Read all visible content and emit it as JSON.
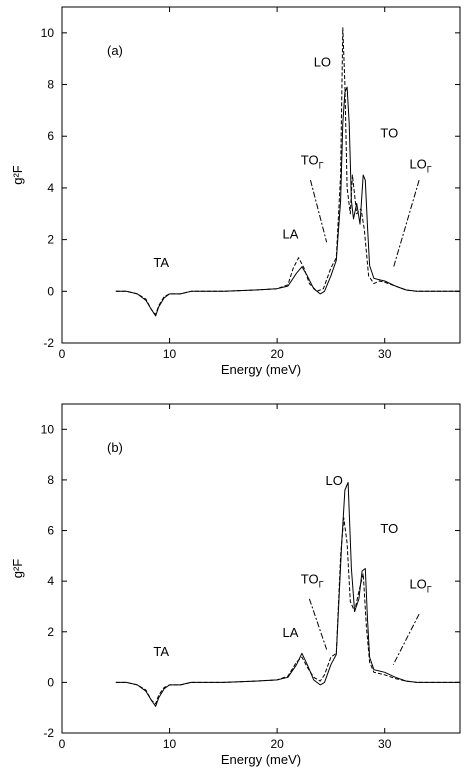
{
  "chart_data": [
    {
      "type": "line",
      "panel_label": "(a)",
      "xlabel": "Energy (meV)",
      "ylabel": "g²F",
      "xlim": [
        0,
        37
      ],
      "ylim": [
        -2,
        11
      ],
      "xticks": [
        0,
        10,
        20,
        30
      ],
      "yticks": [
        -2,
        0,
        2,
        4,
        6,
        8,
        10
      ],
      "grid": false,
      "annotations": [
        {
          "text": "TA",
          "x": 8.5,
          "y": 0.95
        },
        {
          "text": "LA",
          "x": 20.5,
          "y": 2.05
        },
        {
          "text": "TO",
          "sub": "Γ",
          "x": 22.2,
          "y": 4.9
        },
        {
          "text": "LO",
          "x": 23.4,
          "y": 8.7
        },
        {
          "text": "TO",
          "x": 29.6,
          "y": 5.95
        },
        {
          "text": "LO",
          "sub": "Γ",
          "x": 32.3,
          "y": 4.75
        }
      ],
      "pointer_lines": [
        {
          "from": [
            23.1,
            4.3
          ],
          "to": [
            24.6,
            1.9
          ]
        },
        {
          "from": [
            33.2,
            4.3
          ],
          "to": [
            30.8,
            0.9
          ]
        }
      ],
      "series": [
        {
          "style": "solid",
          "x": [
            5,
            6,
            7,
            7.8,
            8.3,
            8.7,
            9.0,
            9.5,
            10,
            11,
            12,
            15,
            18,
            20,
            21,
            21.8,
            22.3,
            22.8,
            23.4,
            24,
            24.4,
            25,
            25.5,
            25.9,
            26.1,
            26.3,
            26.5,
            26.7,
            26.9,
            27.1,
            27.4,
            27.7,
            28,
            28.2,
            28.4,
            28.6,
            29,
            30,
            31,
            32,
            33,
            37
          ],
          "y": [
            0,
            0,
            -0.1,
            -0.35,
            -0.7,
            -0.95,
            -0.6,
            -0.25,
            -0.1,
            -0.1,
            0,
            0,
            0.05,
            0.1,
            0.2,
            0.7,
            0.95,
            0.6,
            0.1,
            -0.1,
            0,
            0.6,
            1.2,
            3.5,
            6.5,
            7.7,
            7.9,
            6.5,
            3.5,
            2.8,
            3.4,
            2.6,
            4.5,
            4.3,
            2.5,
            1,
            0.5,
            0.4,
            0.2,
            0.05,
            0,
            0
          ]
        },
        {
          "style": "dashed",
          "x": [
            5,
            6,
            7,
            7.8,
            8.3,
            8.7,
            9.0,
            9.5,
            10,
            11,
            12,
            15,
            18,
            20,
            21,
            21.5,
            22,
            22.5,
            23,
            23.7,
            24.3,
            25,
            25.5,
            25.9,
            26.1,
            26.3,
            26.5,
            26.8,
            27,
            27.4,
            27.8,
            28.1,
            28.5,
            29,
            29.5,
            30,
            31,
            32,
            33,
            37
          ],
          "y": [
            0,
            0,
            -0.1,
            -0.3,
            -0.7,
            -0.9,
            -0.55,
            -0.2,
            -0.1,
            -0.1,
            0,
            0,
            0.05,
            0.1,
            0.25,
            0.9,
            1.3,
            0.9,
            0.3,
            0,
            0.1,
            0.9,
            1.3,
            4.5,
            10.2,
            8,
            4,
            3,
            4.5,
            3,
            3.2,
            2.4,
            0.6,
            0.3,
            0.4,
            0.35,
            0.2,
            0.05,
            0,
            0
          ]
        }
      ]
    },
    {
      "type": "line",
      "panel_label": "(b)",
      "xlabel": "Energy (meV)",
      "ylabel": "g²F",
      "xlim": [
        0,
        37
      ],
      "ylim": [
        -2,
        11
      ],
      "xticks": [
        0,
        10,
        20,
        30
      ],
      "yticks": [
        -2,
        0,
        2,
        4,
        6,
        8,
        10
      ],
      "grid": false,
      "annotations": [
        {
          "text": "TA",
          "x": 8.5,
          "y": 1.05
        },
        {
          "text": "LA",
          "x": 20.5,
          "y": 1.8
        },
        {
          "text": "TO",
          "sub": "Γ",
          "x": 22.2,
          "y": 3.9
        },
        {
          "text": "LO",
          "x": 24.5,
          "y": 7.8
        },
        {
          "text": "TO",
          "x": 29.6,
          "y": 5.9
        },
        {
          "text": "LO",
          "sub": "Γ",
          "x": 32.3,
          "y": 3.7
        }
      ],
      "pointer_lines": [
        {
          "from": [
            23.0,
            3.3
          ],
          "to": [
            24.6,
            1.3
          ]
        },
        {
          "from": [
            33.2,
            2.7
          ],
          "to": [
            30.8,
            0.7
          ]
        }
      ],
      "series": [
        {
          "style": "solid",
          "x": [
            5,
            6,
            7,
            7.8,
            8.3,
            8.7,
            9.0,
            9.5,
            10,
            11,
            12,
            15,
            18,
            20,
            21,
            21.8,
            22.3,
            22.8,
            23.4,
            24,
            24.4,
            25,
            25.5,
            26,
            26.3,
            26.6,
            26.9,
            27.2,
            27.6,
            27.9,
            28.2,
            28.4,
            28.6,
            29,
            30,
            31,
            32,
            33,
            37
          ],
          "y": [
            0,
            0,
            -0.1,
            -0.35,
            -0.7,
            -0.95,
            -0.6,
            -0.25,
            -0.1,
            -0.1,
            0,
            0,
            0.05,
            0.1,
            0.2,
            0.7,
            1.15,
            0.7,
            0.1,
            -0.1,
            0,
            0.7,
            1.1,
            5.5,
            7.6,
            7.9,
            4.5,
            2.8,
            3.3,
            4.4,
            4.5,
            2.5,
            1,
            0.5,
            0.4,
            0.2,
            0.05,
            0,
            0
          ]
        },
        {
          "style": "dashed",
          "x": [
            5,
            6,
            7,
            7.8,
            8.3,
            8.7,
            9.0,
            9.5,
            10,
            11,
            12,
            15,
            18,
            20,
            21,
            21.8,
            22.3,
            22.8,
            23.4,
            24,
            24.4,
            25,
            25.5,
            25.9,
            26.2,
            26.5,
            26.8,
            27.2,
            27.6,
            28,
            28.3,
            28.6,
            29,
            30,
            31,
            32,
            33,
            37
          ],
          "y": [
            0,
            0,
            -0.1,
            -0.3,
            -0.7,
            -0.85,
            -0.5,
            -0.2,
            -0.1,
            -0.1,
            0,
            0,
            0.05,
            0.1,
            0.25,
            0.8,
            1.0,
            0.6,
            0.2,
            0.05,
            0.3,
            1,
            1.15,
            5,
            6.5,
            5.5,
            3.2,
            2.8,
            3.6,
            4.3,
            2.2,
            0.8,
            0.4,
            0.3,
            0.15,
            0.05,
            0,
            0
          ]
        }
      ]
    }
  ]
}
